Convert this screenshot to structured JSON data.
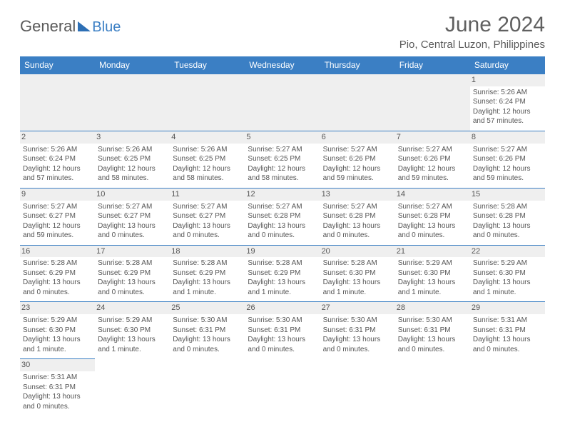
{
  "logo": {
    "general": "General",
    "blue": "Blue"
  },
  "title": "June 2024",
  "location": "Pio, Central Luzon, Philippines",
  "colors": {
    "header_bg": "#3b7fc4",
    "header_text": "#ffffff",
    "grid_line": "#3b7fc4",
    "daynum_bg": "#efefef",
    "text": "#555555",
    "logo_gray": "#5a5a5a",
    "logo_blue": "#3b7fc4"
  },
  "day_headers": [
    "Sunday",
    "Monday",
    "Tuesday",
    "Wednesday",
    "Thursday",
    "Friday",
    "Saturday"
  ],
  "weeks": [
    [
      null,
      null,
      null,
      null,
      null,
      null,
      {
        "n": "1",
        "sr": "5:26 AM",
        "ss": "6:24 PM",
        "dl": "12 hours and 57 minutes."
      }
    ],
    [
      {
        "n": "2",
        "sr": "5:26 AM",
        "ss": "6:24 PM",
        "dl": "12 hours and 57 minutes."
      },
      {
        "n": "3",
        "sr": "5:26 AM",
        "ss": "6:25 PM",
        "dl": "12 hours and 58 minutes."
      },
      {
        "n": "4",
        "sr": "5:26 AM",
        "ss": "6:25 PM",
        "dl": "12 hours and 58 minutes."
      },
      {
        "n": "5",
        "sr": "5:27 AM",
        "ss": "6:25 PM",
        "dl": "12 hours and 58 minutes."
      },
      {
        "n": "6",
        "sr": "5:27 AM",
        "ss": "6:26 PM",
        "dl": "12 hours and 59 minutes."
      },
      {
        "n": "7",
        "sr": "5:27 AM",
        "ss": "6:26 PM",
        "dl": "12 hours and 59 minutes."
      },
      {
        "n": "8",
        "sr": "5:27 AM",
        "ss": "6:26 PM",
        "dl": "12 hours and 59 minutes."
      }
    ],
    [
      {
        "n": "9",
        "sr": "5:27 AM",
        "ss": "6:27 PM",
        "dl": "12 hours and 59 minutes."
      },
      {
        "n": "10",
        "sr": "5:27 AM",
        "ss": "6:27 PM",
        "dl": "13 hours and 0 minutes."
      },
      {
        "n": "11",
        "sr": "5:27 AM",
        "ss": "6:27 PM",
        "dl": "13 hours and 0 minutes."
      },
      {
        "n": "12",
        "sr": "5:27 AM",
        "ss": "6:28 PM",
        "dl": "13 hours and 0 minutes."
      },
      {
        "n": "13",
        "sr": "5:27 AM",
        "ss": "6:28 PM",
        "dl": "13 hours and 0 minutes."
      },
      {
        "n": "14",
        "sr": "5:27 AM",
        "ss": "6:28 PM",
        "dl": "13 hours and 0 minutes."
      },
      {
        "n": "15",
        "sr": "5:28 AM",
        "ss": "6:28 PM",
        "dl": "13 hours and 0 minutes."
      }
    ],
    [
      {
        "n": "16",
        "sr": "5:28 AM",
        "ss": "6:29 PM",
        "dl": "13 hours and 0 minutes."
      },
      {
        "n": "17",
        "sr": "5:28 AM",
        "ss": "6:29 PM",
        "dl": "13 hours and 0 minutes."
      },
      {
        "n": "18",
        "sr": "5:28 AM",
        "ss": "6:29 PM",
        "dl": "13 hours and 1 minute."
      },
      {
        "n": "19",
        "sr": "5:28 AM",
        "ss": "6:29 PM",
        "dl": "13 hours and 1 minute."
      },
      {
        "n": "20",
        "sr": "5:28 AM",
        "ss": "6:30 PM",
        "dl": "13 hours and 1 minute."
      },
      {
        "n": "21",
        "sr": "5:29 AM",
        "ss": "6:30 PM",
        "dl": "13 hours and 1 minute."
      },
      {
        "n": "22",
        "sr": "5:29 AM",
        "ss": "6:30 PM",
        "dl": "13 hours and 1 minute."
      }
    ],
    [
      {
        "n": "23",
        "sr": "5:29 AM",
        "ss": "6:30 PM",
        "dl": "13 hours and 1 minute."
      },
      {
        "n": "24",
        "sr": "5:29 AM",
        "ss": "6:30 PM",
        "dl": "13 hours and 1 minute."
      },
      {
        "n": "25",
        "sr": "5:30 AM",
        "ss": "6:31 PM",
        "dl": "13 hours and 0 minutes."
      },
      {
        "n": "26",
        "sr": "5:30 AM",
        "ss": "6:31 PM",
        "dl": "13 hours and 0 minutes."
      },
      {
        "n": "27",
        "sr": "5:30 AM",
        "ss": "6:31 PM",
        "dl": "13 hours and 0 minutes."
      },
      {
        "n": "28",
        "sr": "5:30 AM",
        "ss": "6:31 PM",
        "dl": "13 hours and 0 minutes."
      },
      {
        "n": "29",
        "sr": "5:31 AM",
        "ss": "6:31 PM",
        "dl": "13 hours and 0 minutes."
      }
    ],
    [
      {
        "n": "30",
        "sr": "5:31 AM",
        "ss": "6:31 PM",
        "dl": "13 hours and 0 minutes."
      },
      null,
      null,
      null,
      null,
      null,
      null
    ]
  ],
  "labels": {
    "sunrise": "Sunrise:",
    "sunset": "Sunset:",
    "daylight": "Daylight:"
  }
}
